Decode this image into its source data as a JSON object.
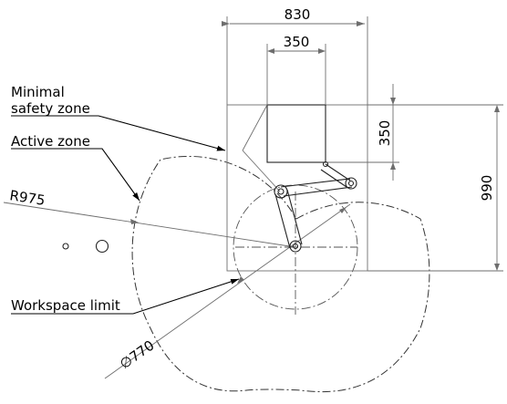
{
  "labels": {
    "minimal_safety_zone_line1": "Minimal",
    "minimal_safety_zone_line2": "safety zone",
    "active_zone": "Active zone",
    "workspace_limit": "Workspace limit"
  },
  "dimensions": {
    "width_outer": "830",
    "width_inner": "350",
    "height_inner": "350",
    "height_outer": "990",
    "radius": "R975",
    "diameter": "770",
    "diameter_symbol": "∅"
  }
}
